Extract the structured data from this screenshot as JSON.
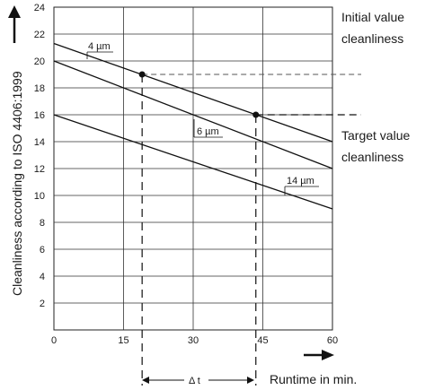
{
  "chart_data": {
    "type": "line",
    "xlabel": "Runtime in min.",
    "ylabel": "Cleanliness according to ISO 4406:1999",
    "xlim": [
      0,
      60
    ],
    "ylim": [
      0,
      24
    ],
    "x_ticks": [
      "0",
      "15",
      "30",
      "45",
      "60"
    ],
    "y_ticks": [
      "2",
      "4",
      "6",
      "8",
      "10",
      "12",
      "14",
      "16",
      "18",
      "20",
      "22",
      "24"
    ],
    "grid": true,
    "series": [
      {
        "name": "4 µm",
        "x": [
          0,
          60
        ],
        "y": [
          21.3,
          14.0
        ]
      },
      {
        "name": "6 µm",
        "x": [
          0,
          60
        ],
        "y": [
          20.0,
          12.0
        ]
      },
      {
        "name": "14 µm",
        "x": [
          0,
          60
        ],
        "y": [
          16.0,
          9.0
        ]
      }
    ],
    "markers": [
      {
        "x": 19,
        "y": 19
      },
      {
        "x": 43.5,
        "y": 16
      }
    ],
    "annotations": {
      "initial_value": [
        "Initial value",
        "cleanliness"
      ],
      "target_value": [
        "Target value",
        "cleanliness"
      ],
      "delta_t": "Δ t"
    },
    "arrows": {
      "x_axis": "right-arrow",
      "y_axis": "up-arrow"
    }
  }
}
